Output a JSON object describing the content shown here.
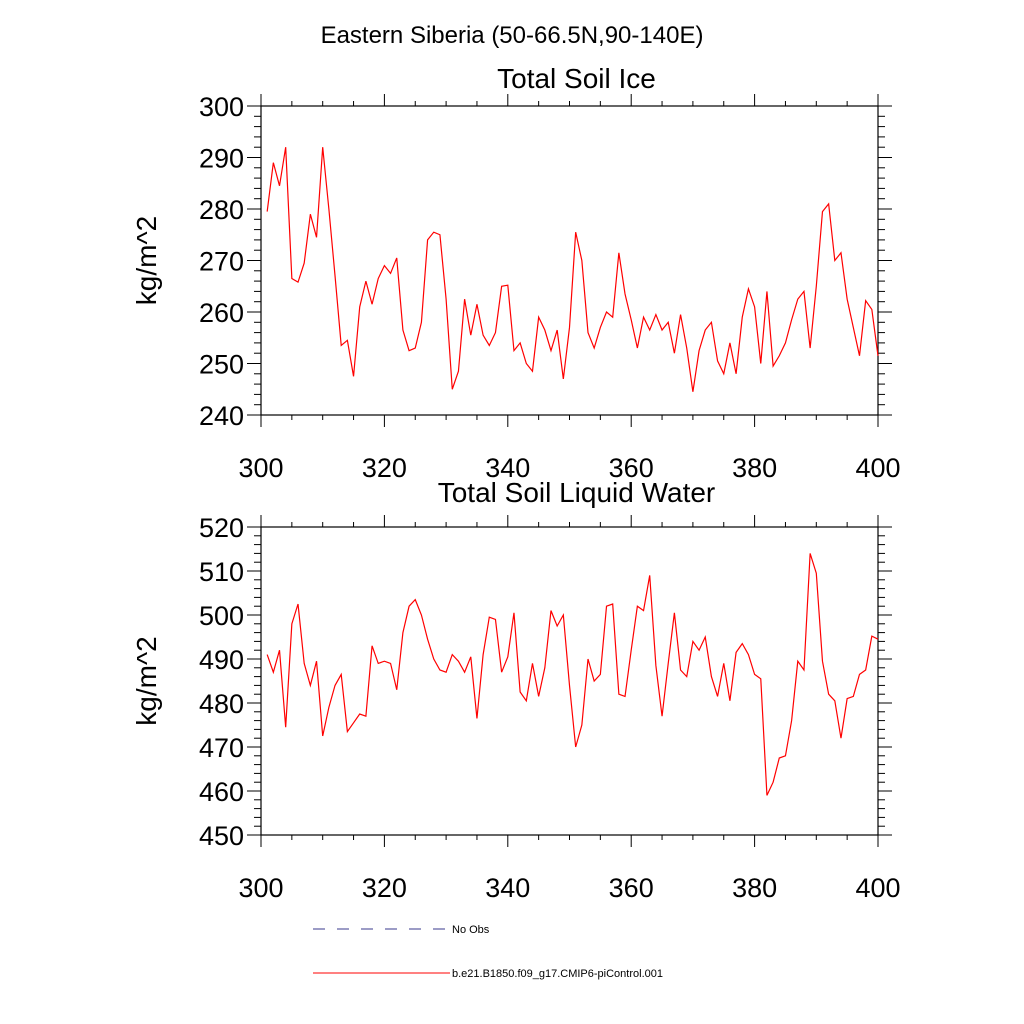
{
  "title": "Eastern Siberia (50-66.5N,90-140E)",
  "colors": {
    "series": "#ff0000",
    "obs": "#3a3a8c",
    "axis": "#000000"
  },
  "legend": [
    {
      "label": "No Obs",
      "style": "dashed",
      "color": "#3a3a8c"
    },
    {
      "label": "b.e21.B1850.f09_g17.CMIP6-piControl.001",
      "style": "solid",
      "color": "#ff0000"
    }
  ],
  "chart_data": [
    {
      "type": "line",
      "title": "Total Soil Ice",
      "ylabel": "kg/m^2",
      "xlabel": "",
      "xlim": [
        300,
        400
      ],
      "ylim": [
        240,
        300
      ],
      "xticks": [
        300,
        320,
        340,
        360,
        380,
        400
      ],
      "yticks": [
        240,
        250,
        260,
        270,
        280,
        290,
        300
      ],
      "x_start": 301,
      "x_step": 1,
      "series": [
        {
          "color": "#ff0000",
          "values": [
            279.5,
            289,
            284.5,
            292,
            266.5,
            265.8,
            269.5,
            279,
            274.5,
            292,
            280,
            267,
            253.5,
            254.5,
            247.5,
            261,
            266,
            261.5,
            266.5,
            269,
            267.5,
            270.5,
            256.5,
            252.5,
            253,
            258,
            274,
            275.5,
            275,
            262.5,
            245,
            248.5,
            262.5,
            255.5,
            261.5,
            255.5,
            253.5,
            256,
            265,
            265.2,
            252.5,
            254,
            250,
            248.5,
            259,
            256.5,
            252.5,
            256.5,
            247,
            257,
            275.5,
            270,
            256,
            253,
            257,
            260,
            259,
            271.5,
            263.5,
            258.5,
            253,
            259,
            256.5,
            259.5,
            256.5,
            258,
            252,
            259.5,
            253,
            244.5,
            252.5,
            256.5,
            258,
            250.5,
            248,
            254,
            248,
            259,
            264.5,
            261,
            250,
            264,
            249.5,
            251.5,
            254,
            258.5,
            262.5,
            264,
            253,
            265,
            279.5,
            281,
            270,
            271.5,
            262.5,
            257,
            251.5,
            262.2,
            260.5,
            251.5
          ]
        }
      ]
    },
    {
      "type": "line",
      "title": "Total Soil Liquid Water",
      "ylabel": "kg/m^2",
      "xlabel": "",
      "xlim": [
        300,
        400
      ],
      "ylim": [
        450,
        520
      ],
      "xticks": [
        300,
        320,
        340,
        360,
        380,
        400
      ],
      "yticks": [
        450,
        460,
        470,
        480,
        490,
        500,
        510,
        520
      ],
      "x_start": 301,
      "x_step": 1,
      "series": [
        {
          "color": "#ff0000",
          "values": [
            491,
            487,
            492,
            474.5,
            498,
            502.5,
            489,
            484,
            489.5,
            472.5,
            479,
            484,
            486.5,
            473.5,
            475.5,
            477.5,
            477,
            493,
            489,
            489.5,
            489,
            483,
            496,
            502,
            503.5,
            500,
            494.5,
            490,
            487.5,
            487,
            491,
            489.5,
            487,
            490.5,
            476.5,
            491,
            499.5,
            499,
            487,
            490.5,
            500.5,
            482.5,
            480.5,
            489,
            481.5,
            488,
            501,
            497.5,
            500,
            484,
            470,
            475,
            490,
            485,
            486.5,
            502,
            502.5,
            482,
            481.5,
            492,
            502,
            501,
            509,
            488.5,
            477,
            489,
            500.5,
            487.5,
            486,
            494,
            492,
            495,
            486,
            481.5,
            489,
            480.5,
            491.5,
            493.5,
            491,
            486.5,
            485.5,
            459,
            462,
            467.5,
            468,
            476,
            489.5,
            487.5,
            514,
            509.5,
            489.5,
            482,
            480.5,
            472,
            481,
            481.5,
            486.5,
            487.5,
            495.2,
            494.5
          ]
        }
      ]
    }
  ]
}
